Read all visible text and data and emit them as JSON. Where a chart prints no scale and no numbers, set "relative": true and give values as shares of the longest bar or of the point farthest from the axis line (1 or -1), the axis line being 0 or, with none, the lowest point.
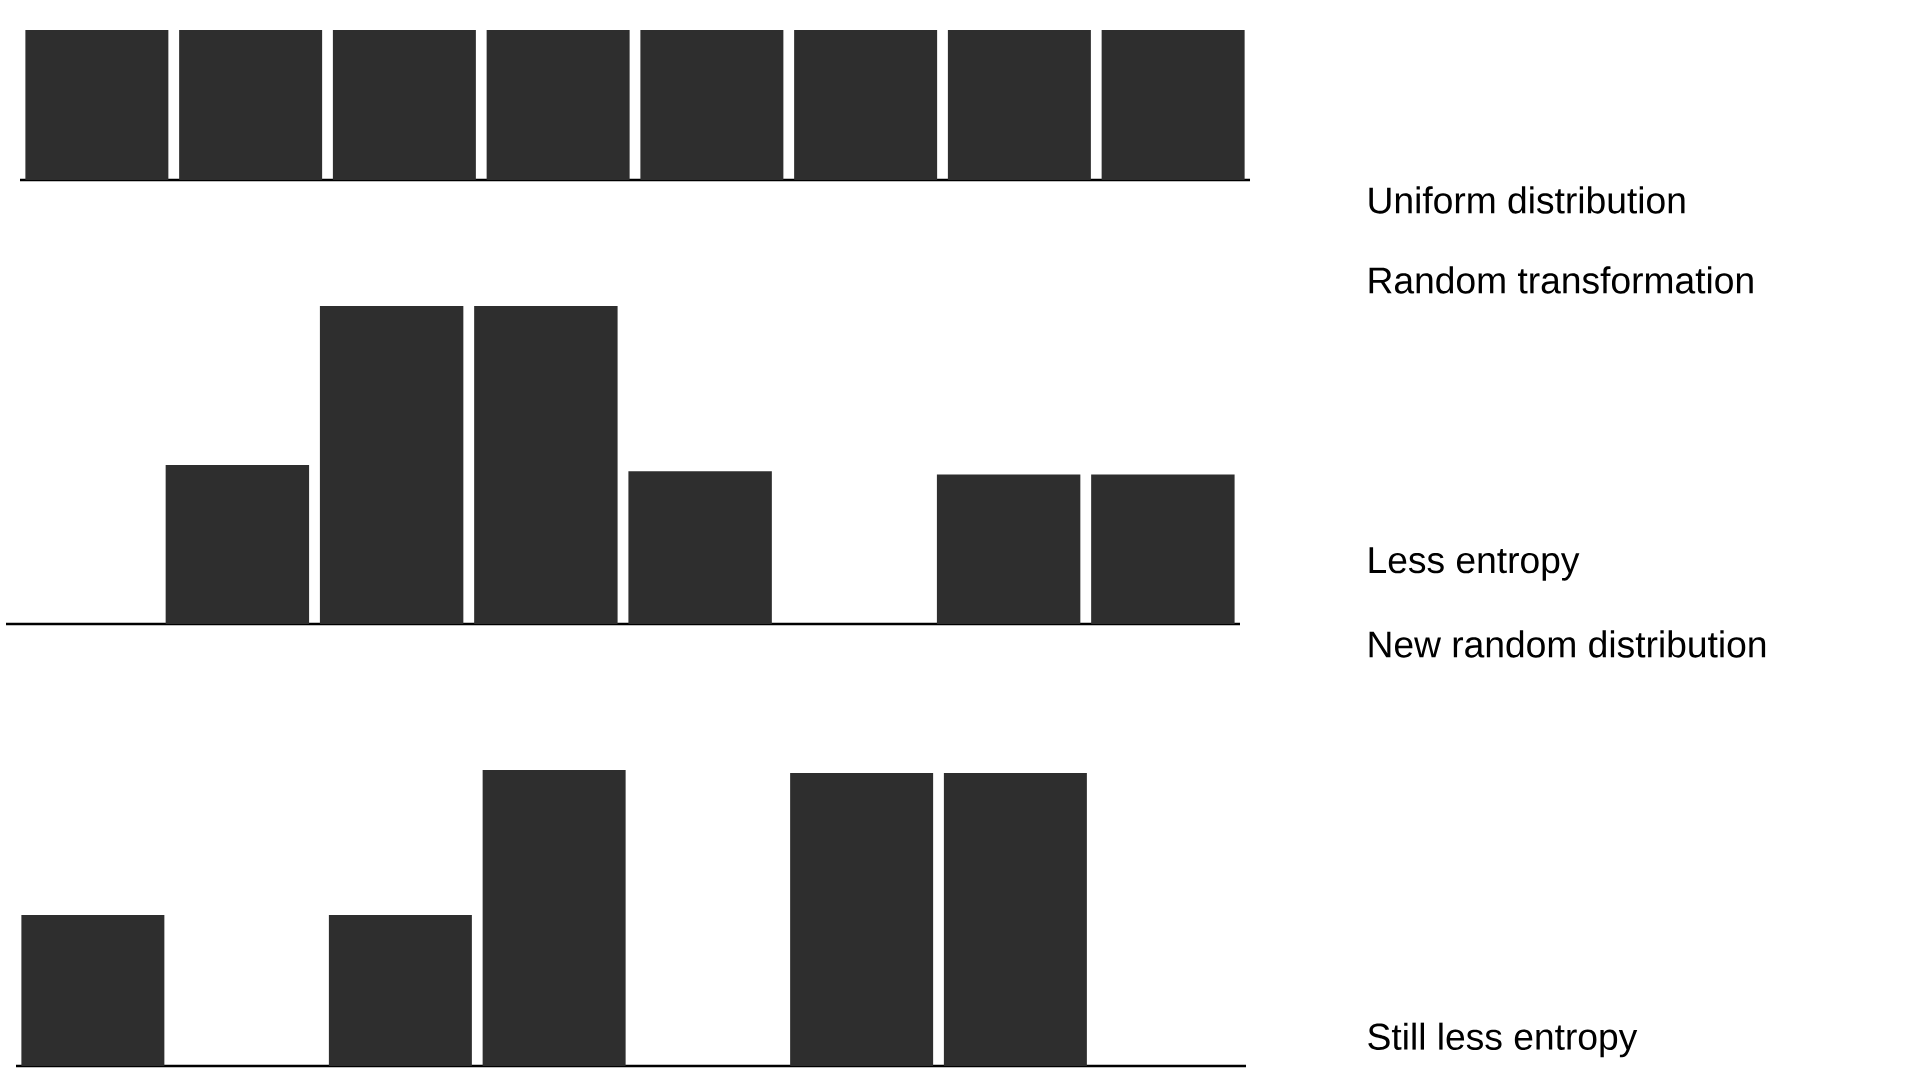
{
  "chart_data": [
    {
      "type": "bar",
      "relative": true,
      "categories": [
        null,
        null,
        null,
        null,
        null,
        null,
        null,
        null
      ],
      "values": [
        1,
        1,
        1,
        1,
        1,
        1,
        1,
        1
      ],
      "color": "#2e2e2e",
      "annotations": [
        "Uniform distribution",
        "Random transformation"
      ]
    },
    {
      "type": "bar",
      "relative": true,
      "categories": [
        null,
        null,
        null,
        null,
        null,
        null,
        null,
        null
      ],
      "values": [
        0,
        0.5,
        1,
        1,
        0.48,
        0,
        0.47,
        0.47
      ],
      "color": "#2e2e2e",
      "annotations": [
        "Less entropy",
        "New random distribution"
      ]
    },
    {
      "type": "bar",
      "relative": true,
      "categories": [
        null,
        null,
        null,
        null,
        null,
        null,
        null,
        null
      ],
      "values": [
        0.51,
        0,
        0.51,
        1,
        0,
        0.99,
        0.99,
        0
      ],
      "color": "#2e2e2e",
      "annotations": [
        "Still less entropy"
      ]
    }
  ]
}
